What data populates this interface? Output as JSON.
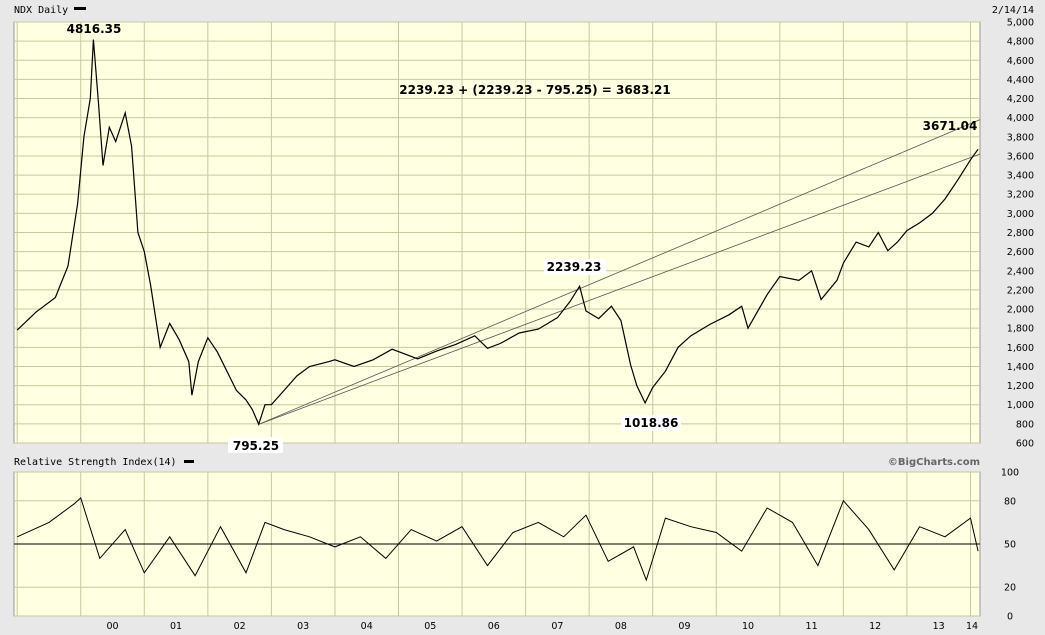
{
  "header": {
    "title": "NDX Daily",
    "date": "2/14/14"
  },
  "price_panel": {
    "annotations": {
      "peak_2000": "4816.35",
      "low_2002": "795.25",
      "high_2007": "2239.23",
      "low_2009": "1018.86",
      "current": "3671.04",
      "projection": "2239.23 + (2239.23 - 795.25) =  3683.21"
    }
  },
  "rsi_panel": {
    "title": "Relative Strength Index(14)",
    "credit": "©BigCharts.com"
  },
  "colors": {
    "plot_bg": "#ffffe1",
    "grid": "#c8c8a0",
    "frame_bg": "#e8e8e8",
    "line": "#000000",
    "trendline": "#555555"
  },
  "chart_data": [
    {
      "type": "line",
      "title": "NDX Daily",
      "x_unit": "year",
      "x": [
        1999.0,
        1999.3,
        1999.6,
        1999.8,
        1999.95,
        2000.05,
        2000.15,
        2000.2,
        2000.28,
        2000.35,
        2000.45,
        2000.55,
        2000.7,
        2000.8,
        2000.9,
        2001.0,
        2001.1,
        2001.25,
        2001.4,
        2001.55,
        2001.7,
        2001.75,
        2001.85,
        2002.0,
        2002.15,
        2002.3,
        2002.45,
        2002.6,
        2002.7,
        2002.8,
        2002.9,
        2003.0,
        2003.2,
        2003.4,
        2003.6,
        2003.9,
        2004.0,
        2004.3,
        2004.6,
        2004.9,
        2005.3,
        2005.6,
        2005.9,
        2006.2,
        2006.4,
        2006.6,
        2006.9,
        2007.2,
        2007.5,
        2007.7,
        2007.85,
        2007.95,
        2008.15,
        2008.35,
        2008.5,
        2008.65,
        2008.75,
        2008.88,
        2009.0,
        2009.2,
        2009.4,
        2009.6,
        2009.9,
        2010.2,
        2010.4,
        2010.5,
        2010.8,
        2011.0,
        2011.3,
        2011.5,
        2011.65,
        2011.9,
        2012.0,
        2012.2,
        2012.4,
        2012.55,
        2012.7,
        2012.85,
        2013.0,
        2013.2,
        2013.4,
        2013.6,
        2013.8,
        2014.0,
        2014.12
      ],
      "y": [
        1780,
        1970,
        2120,
        2450,
        3100,
        3800,
        4200,
        4816.35,
        4150,
        3500,
        3900,
        3750,
        4050,
        3700,
        2800,
        2600,
        2250,
        1600,
        1850,
        1680,
        1450,
        1100,
        1450,
        1700,
        1550,
        1350,
        1150,
        1050,
        950,
        795.25,
        1000,
        1000,
        1150,
        1300,
        1400,
        1450,
        1470,
        1400,
        1470,
        1580,
        1480,
        1560,
        1630,
        1720,
        1590,
        1640,
        1750,
        1790,
        1910,
        2080,
        2239.23,
        1980,
        1900,
        2030,
        1880,
        1420,
        1200,
        1018.86,
        1180,
        1350,
        1600,
        1720,
        1840,
        1940,
        2030,
        1800,
        2150,
        2340,
        2300,
        2400,
        2100,
        2300,
        2480,
        2700,
        2650,
        2800,
        2610,
        2700,
        2820,
        2900,
        3000,
        3150,
        3350,
        3560,
        3671.04
      ],
      "ylim": [
        600,
        5000
      ],
      "xlim": [
        1998.95,
        2014.15
      ],
      "yticks": [
        600,
        800,
        1000,
        1200,
        1400,
        1600,
        1800,
        2000,
        2200,
        2400,
        2600,
        2800,
        3000,
        3200,
        3400,
        3600,
        3800,
        4000,
        4200,
        4400,
        4600,
        4800,
        5000
      ],
      "ytick_labels": [
        "600",
        "800",
        "1,000",
        "1,200",
        "1,400",
        "1,600",
        "1,800",
        "2,000",
        "2,200",
        "2,400",
        "2,600",
        "2,800",
        "3,000",
        "3,200",
        "3,400",
        "3,600",
        "3,800",
        "4,000",
        "4,200",
        "4,400",
        "4,600",
        "4,800",
        "5,000"
      ],
      "trendlines": [
        {
          "from": [
            2002.8,
            795.25
          ],
          "to": [
            2014.15,
            3980
          ]
        },
        {
          "from": [
            2002.8,
            795.25
          ],
          "to": [
            2014.15,
            3620
          ]
        }
      ],
      "grid": true
    },
    {
      "type": "line",
      "title": "Relative Strength Index(14)",
      "x_unit": "year",
      "x": [
        1999.0,
        1999.5,
        1999.9,
        2000.0,
        2000.3,
        2000.7,
        2001.0,
        2001.4,
        2001.8,
        2002.2,
        2002.6,
        2002.9,
        2003.2,
        2003.6,
        2004.0,
        2004.4,
        2004.8,
        2005.2,
        2005.6,
        2006.0,
        2006.4,
        2006.8,
        2007.2,
        2007.6,
        2007.95,
        2008.3,
        2008.7,
        2008.9,
        2009.2,
        2009.6,
        2010.0,
        2010.4,
        2010.8,
        2011.2,
        2011.6,
        2012.0,
        2012.4,
        2012.8,
        2013.2,
        2013.6,
        2014.0,
        2014.12
      ],
      "y": [
        55,
        65,
        78,
        82,
        40,
        60,
        30,
        55,
        28,
        62,
        30,
        65,
        60,
        55,
        48,
        55,
        40,
        60,
        52,
        62,
        35,
        58,
        65,
        55,
        70,
        38,
        48,
        25,
        68,
        62,
        58,
        45,
        75,
        65,
        35,
        80,
        60,
        32,
        62,
        55,
        68,
        45
      ],
      "ylim": [
        0,
        100
      ],
      "yticks": [
        0,
        20,
        50,
        80,
        100
      ],
      "reference_line": 50,
      "xticks": [
        2000,
        2001,
        2002,
        2003,
        2004,
        2005,
        2006,
        2007,
        2008,
        2009,
        2010,
        2011,
        2012,
        2013,
        2014
      ],
      "xtick_labels": [
        "00",
        "01",
        "02",
        "03",
        "04",
        "05",
        "06",
        "07",
        "08",
        "09",
        "10",
        "11",
        "12",
        "13",
        "14"
      ],
      "grid": true
    }
  ]
}
